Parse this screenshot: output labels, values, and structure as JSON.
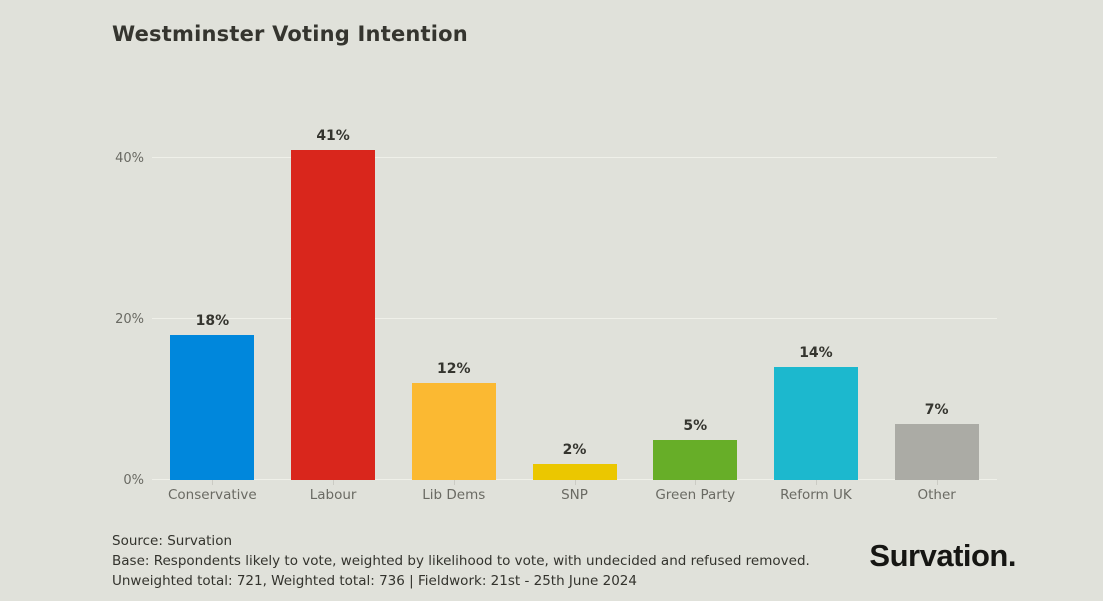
{
  "chart_data": {
    "type": "bar",
    "title": "Westminster Voting Intention",
    "categories": [
      "Conservative",
      "Labour",
      "Lib Dems",
      "SNP",
      "Green Party",
      "Reform UK",
      "Other"
    ],
    "values": [
      18,
      41,
      12,
      2,
      5,
      14,
      7
    ],
    "value_labels": [
      "18%",
      "41%",
      "12%",
      "2%",
      "5%",
      "14%",
      "7%"
    ],
    "bar_colors": [
      "#0087DC",
      "#D9261C",
      "#FBB932",
      "#EBC700",
      "#67AE28",
      "#1CB8CE",
      "#ABABA5"
    ],
    "xlabel": "",
    "ylabel": "",
    "ylim": [
      0,
      45
    ],
    "yticks": [
      0,
      20,
      40
    ],
    "ytick_labels": [
      "0%",
      "20%",
      "40%"
    ],
    "grid": "horizontal",
    "legend": "none"
  },
  "colors": {
    "background": "#E0E1DA",
    "gridline": "#EFF0E9",
    "title_text": "#35352F",
    "axis_text": "#6A6A63",
    "footer_text": "#33332D",
    "logo_text": "#161613"
  },
  "footer": {
    "source_line": "Source: Survation",
    "base_line": "Base: Respondents likely to vote, weighted by likelihood to vote, with undecided and refused removed.",
    "totals_line": "Unweighted total: 721, Weighted total: 736 | Fieldwork: 21st - 25th June 2024",
    "logo": "Survation."
  }
}
